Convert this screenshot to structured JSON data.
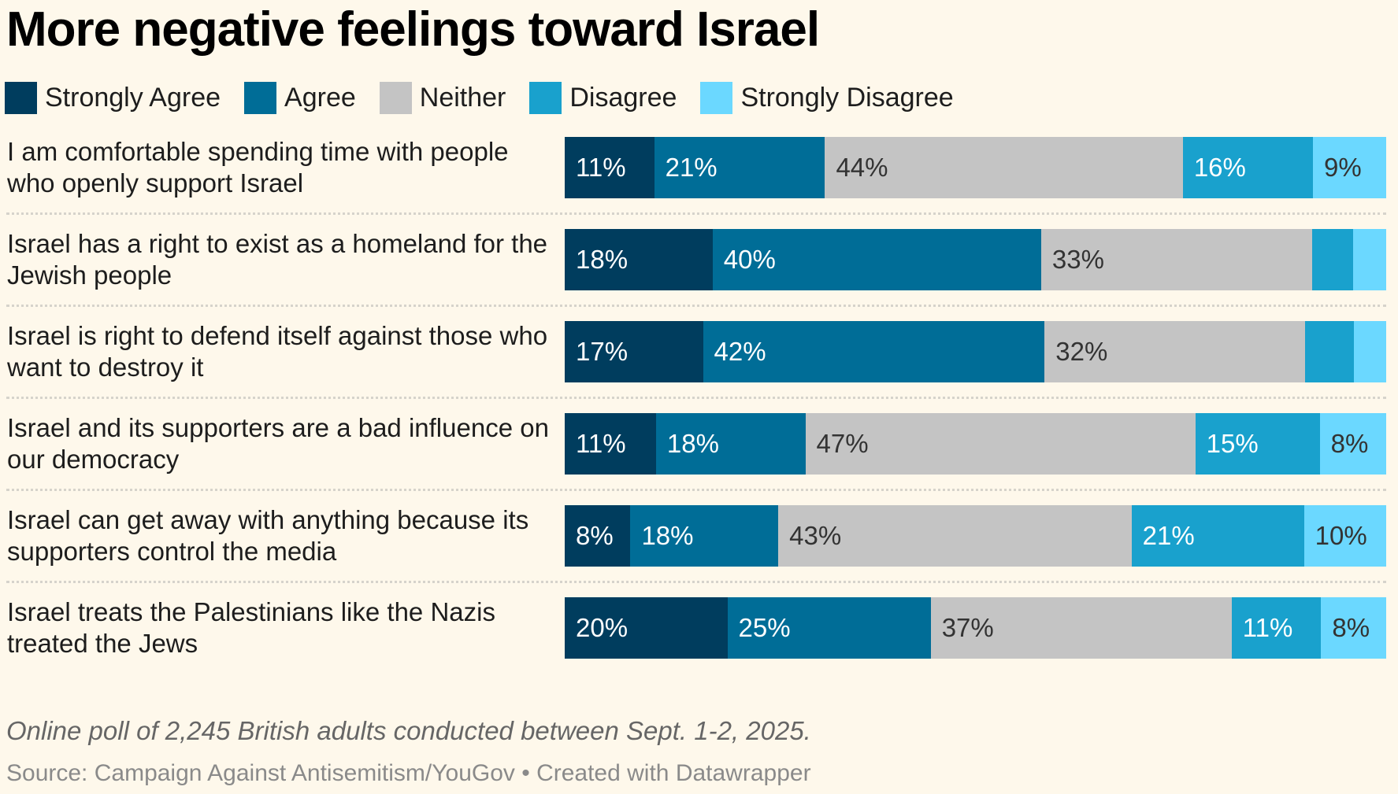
{
  "title": "More negative feelings toward Israel",
  "chart_data": {
    "type": "bar",
    "stacked": true,
    "orientation": "horizontal",
    "title": "More negative feelings toward Israel",
    "series_names": [
      "Strongly Agree",
      "Agree",
      "Neither",
      "Disagree",
      "Strongly Disagree"
    ],
    "colors": [
      "#003d5e",
      "#006d97",
      "#c4c4c4",
      "#19a1cd",
      "#6bd8ff"
    ],
    "text_colors": [
      "#ffffff",
      "#ffffff",
      "#333333",
      "#ffffff",
      "#333333"
    ],
    "categories": [
      "I am comfortable spending time with people who openly support Israel",
      "Israel has a right to exist as a homeland for the Jewish people",
      "Israel is right to defend itself against those who want to destroy it",
      "Israel and its supporters are a bad influence on our democracy",
      "Israel can get away with anything because its supporters control the media",
      "Israel treats the Palestinians like the Nazis treated the Jews"
    ],
    "values": [
      [
        11,
        21,
        44,
        16,
        9
      ],
      [
        18,
        40,
        33,
        5,
        4
      ],
      [
        17,
        42,
        32,
        6,
        4
      ],
      [
        11,
        18,
        47,
        15,
        8
      ],
      [
        8,
        18,
        43,
        21,
        10
      ],
      [
        20,
        25,
        37,
        11,
        8
      ]
    ],
    "labels_shown": [
      [
        true,
        true,
        true,
        true,
        true
      ],
      [
        true,
        true,
        true,
        false,
        false
      ],
      [
        true,
        true,
        true,
        false,
        false
      ],
      [
        true,
        true,
        true,
        true,
        true
      ],
      [
        true,
        true,
        true,
        true,
        true
      ],
      [
        true,
        true,
        true,
        true,
        true
      ]
    ],
    "legend_position": "top-left"
  },
  "note": "Online poll of 2,245 British adults conducted between Sept. 1-2, 2025.",
  "source": "Source: Campaign Against Antisemitism/YouGov • Created with Datawrapper"
}
